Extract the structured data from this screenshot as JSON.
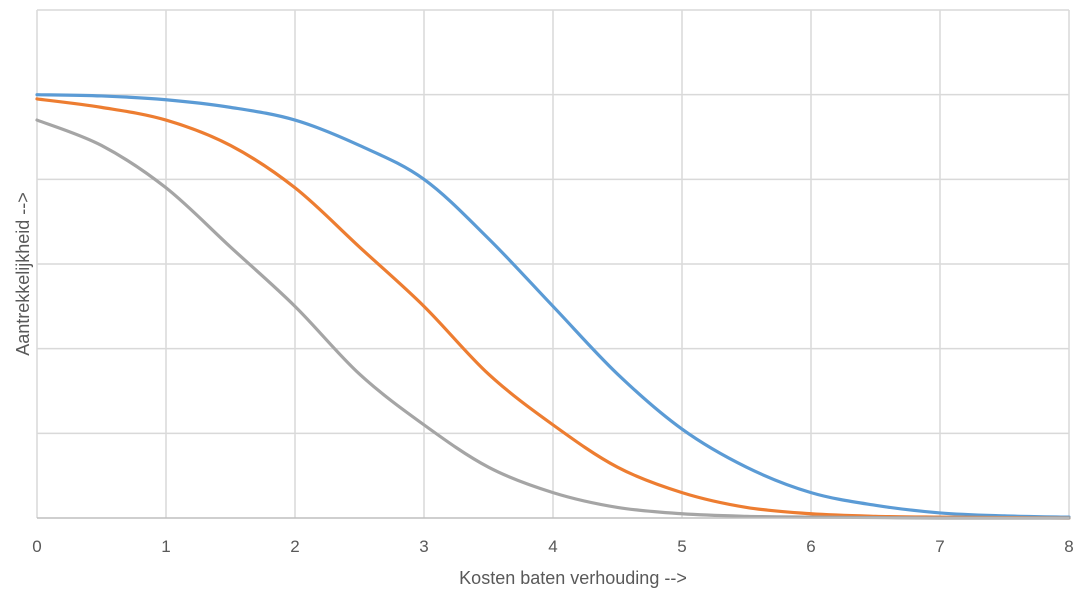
{
  "chart_data": {
    "type": "line",
    "title": "",
    "xlabel": "Kosten baten verhouding -->",
    "ylabel": "Aantrekkelijkheid -->",
    "xlim": [
      0,
      8
    ],
    "ylim": [
      0,
      1.2
    ],
    "x_ticks": [
      "0",
      "1",
      "2",
      "3",
      "4",
      "5",
      "6",
      "7",
      "8"
    ],
    "y_tick_count": 7,
    "y_tick_labels_visible": false,
    "grid": true,
    "legend": "none",
    "series": [
      {
        "color": "#5b9bd5",
        "x": [
          0,
          0.5,
          1,
          1.5,
          2,
          2.5,
          3,
          3.5,
          4,
          4.5,
          5,
          5.5,
          6,
          6.5,
          7,
          7.5,
          8
        ],
        "y": [
          1.0,
          0.997,
          0.988,
          0.97,
          0.94,
          0.88,
          0.8,
          0.66,
          0.5,
          0.34,
          0.21,
          0.12,
          0.06,
          0.03,
          0.012,
          0.005,
          0.002
        ]
      },
      {
        "color": "#ed7d31",
        "x": [
          0,
          0.5,
          1,
          1.5,
          2,
          2.5,
          3,
          3.5,
          4,
          4.5,
          5,
          5.5,
          6,
          6.5,
          7,
          7.5,
          8
        ],
        "y": [
          0.99,
          0.97,
          0.94,
          0.88,
          0.78,
          0.64,
          0.5,
          0.34,
          0.22,
          0.12,
          0.06,
          0.025,
          0.01,
          0.004,
          0.002,
          0.001,
          0.0
        ]
      },
      {
        "color": "#a5a5a5",
        "x": [
          0,
          0.5,
          1,
          1.5,
          2,
          2.5,
          3,
          3.5,
          4,
          4.5,
          5,
          5.5,
          6,
          6.5,
          7,
          7.5,
          8
        ],
        "y": [
          0.94,
          0.88,
          0.78,
          0.64,
          0.5,
          0.34,
          0.22,
          0.12,
          0.06,
          0.025,
          0.01,
          0.004,
          0.002,
          0.001,
          0.0,
          0.0,
          0.0
        ]
      }
    ]
  }
}
